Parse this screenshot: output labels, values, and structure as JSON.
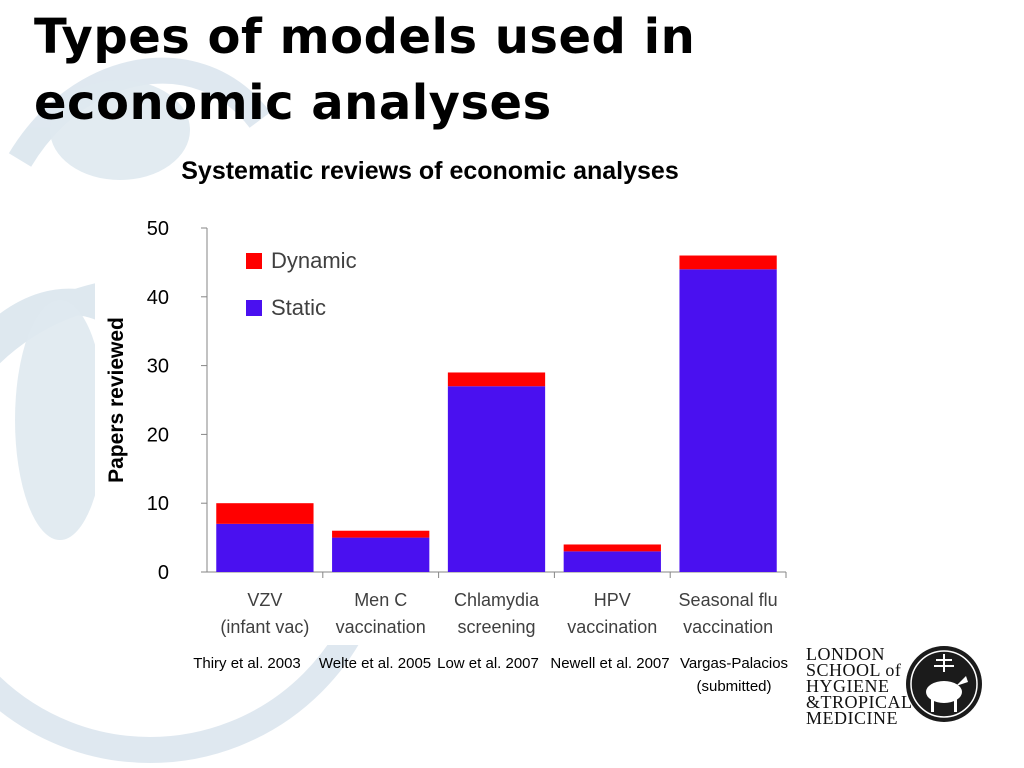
{
  "slide": {
    "title": "Types of models used in economic analyses",
    "subtitle": "Systematic reviews of economic analyses"
  },
  "citations": [
    "Thiry et al. 2003",
    "Welte et al. 2005",
    "Low et al. 2007",
    "Newell et al. 2007",
    "Vargas-Palacios (submitted)"
  ],
  "logo": {
    "lines": [
      "LONDON",
      "SCHOOL of",
      "HYGIENE",
      "&TROPICAL",
      "MEDICINE"
    ]
  },
  "colors": {
    "static": "#4a10f0",
    "dynamic": "#ff0000",
    "watermark": "#dbe6ee"
  },
  "chart_data": {
    "type": "bar",
    "stacked": true,
    "categories": [
      [
        "VZV",
        "(infant vac)"
      ],
      [
        "Men C",
        "vaccination"
      ],
      [
        "Chlamydia",
        "screening"
      ],
      [
        "HPV",
        "vaccination"
      ],
      [
        "Seasonal flu",
        "vaccination"
      ]
    ],
    "series": [
      {
        "name": "Static",
        "values": [
          7,
          5,
          27,
          3,
          44
        ]
      },
      {
        "name": "Dynamic",
        "values": [
          3,
          1,
          2,
          1,
          2
        ]
      }
    ],
    "ylabel": "Papers reviewed",
    "ylim": [
      0,
      50
    ],
    "yticks": [
      0,
      10,
      20,
      30,
      40,
      50
    ],
    "legend_order": [
      "Dynamic",
      "Static"
    ],
    "legend_position": "top-left",
    "grid": false
  }
}
